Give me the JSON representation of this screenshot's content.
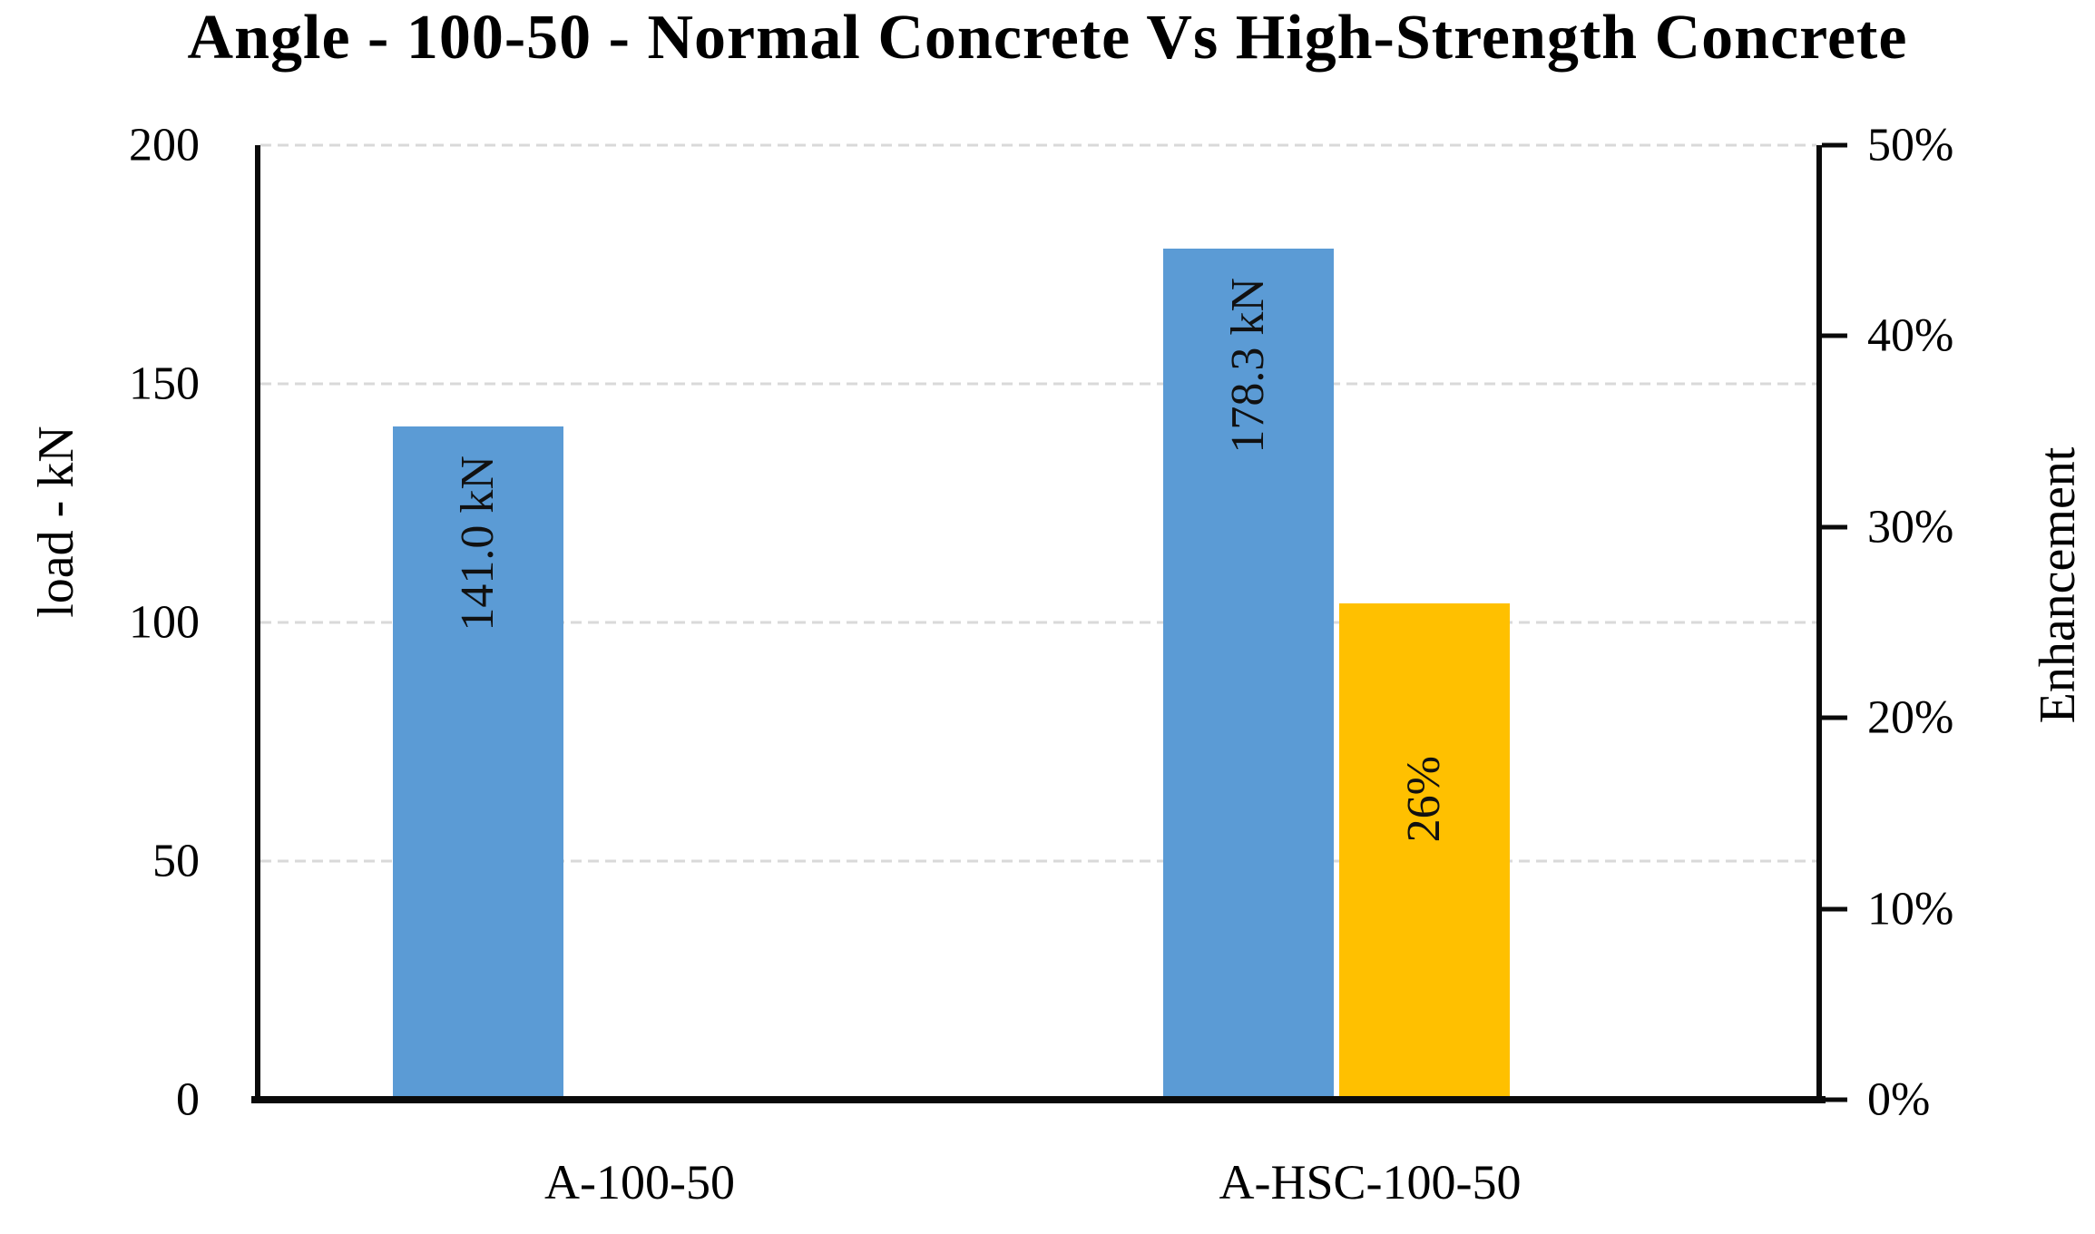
{
  "chart_data": {
    "type": "bar",
    "title": "Angle - 100-50 - Normal Concrete Vs High-Strength Concrete",
    "categories": [
      "A-100-50",
      "A-HSC-100-50"
    ],
    "series": [
      {
        "name": "Load",
        "axis": "left",
        "color": "#5B9BD5",
        "values": [
          141.0,
          178.3
        ],
        "data_labels": [
          "141.0 kN",
          "178.3 kN"
        ]
      },
      {
        "name": "Enhancement",
        "axis": "right",
        "color": "#FFC000",
        "values": [
          null,
          26
        ],
        "data_labels": [
          null,
          "26%"
        ]
      }
    ],
    "left_axis": {
      "title": "load - kN",
      "min": 0,
      "max": 200,
      "tick_step": 50,
      "ticks": [
        "200",
        "150",
        "100",
        "50",
        "0"
      ]
    },
    "right_axis": {
      "title": "Enhancement",
      "min": 0,
      "max": 50,
      "tick_step": 10,
      "ticks": [
        "50%",
        "40%",
        "30%",
        "20%",
        "10%",
        "0%"
      ]
    },
    "gridlines": {
      "orientation": "horizontal",
      "style": "dashed",
      "color": "#D9D9D9",
      "at_left_axis_values": [
        200,
        150,
        100,
        50
      ]
    },
    "legend": "none",
    "data_label_rotation_deg": 90,
    "colors": {
      "bar_blue": "#5B9BD5",
      "bar_orange": "#FFC000",
      "axis_line": "#0A0A0A",
      "gridline": "#D9D9D9",
      "text": "#000000",
      "background": "#FFFFFF"
    }
  }
}
